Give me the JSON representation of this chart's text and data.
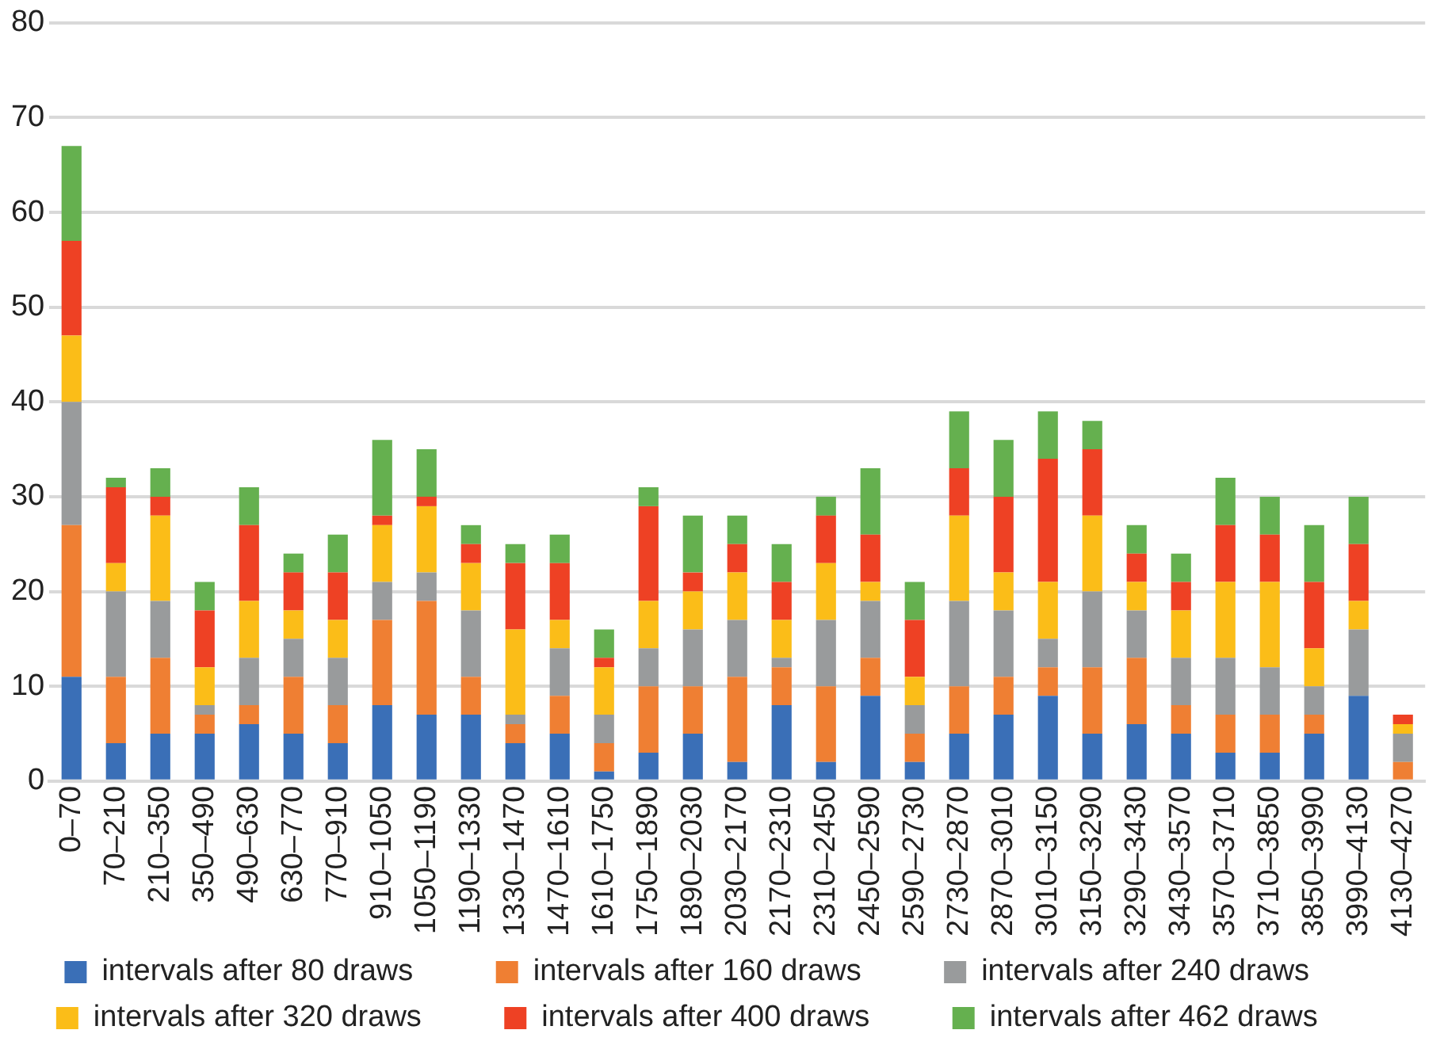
{
  "chart_data": {
    "type": "bar",
    "stacked": true,
    "categories": [
      "0–70",
      "70–210",
      "210–350",
      "350–490",
      "490–630",
      "630–770",
      "770–910",
      "910–1050",
      "1050–1190",
      "1190–1330",
      "1330–1470",
      "1470–1610",
      "1610–1750",
      "1750–1890",
      "1890–2030",
      "2030–2170",
      "2170–2310",
      "2310–2450",
      "2450–2590",
      "2590–2730",
      "2730–2870",
      "2870–3010",
      "3010–3150",
      "3150–3290",
      "3290–3430",
      "3430–3570",
      "3570–3710",
      "3710–3850",
      "3850–3990",
      "3990–4130",
      "4130–4270"
    ],
    "series": [
      {
        "name": "intervals after 80 draws",
        "color": "#3a6fb7",
        "values": [
          11,
          4,
          5,
          5,
          6,
          5,
          4,
          8,
          7,
          7,
          4,
          5,
          1,
          3,
          5,
          2,
          8,
          2,
          9,
          2,
          5,
          7,
          9,
          5,
          6,
          5,
          3,
          3,
          5,
          9,
          0
        ]
      },
      {
        "name": "intervals after 160 draws",
        "color": "#ef7f33",
        "values": [
          16,
          7,
          8,
          2,
          2,
          6,
          4,
          9,
          12,
          4,
          2,
          4,
          3,
          7,
          5,
          9,
          4,
          8,
          4,
          3,
          5,
          4,
          3,
          7,
          7,
          3,
          4,
          4,
          2,
          0,
          2
        ]
      },
      {
        "name": "intervals after 240 draws",
        "color": "#999b9c",
        "values": [
          13,
          9,
          6,
          1,
          5,
          4,
          5,
          4,
          3,
          7,
          1,
          5,
          3,
          4,
          6,
          6,
          1,
          7,
          6,
          3,
          9,
          7,
          3,
          8,
          5,
          5,
          6,
          5,
          3,
          7,
          3
        ]
      },
      {
        "name": "intervals after 320 draws",
        "color": "#fbbd18",
        "values": [
          7,
          3,
          9,
          4,
          6,
          3,
          4,
          6,
          7,
          5,
          9,
          3,
          5,
          5,
          4,
          5,
          4,
          6,
          2,
          3,
          9,
          4,
          6,
          8,
          3,
          5,
          8,
          9,
          4,
          3,
          1
        ]
      },
      {
        "name": "intervals after 400 draws",
        "color": "#ee4124",
        "values": [
          10,
          8,
          2,
          6,
          8,
          4,
          5,
          1,
          1,
          2,
          7,
          6,
          1,
          10,
          2,
          3,
          4,
          5,
          5,
          6,
          5,
          8,
          13,
          7,
          3,
          3,
          6,
          5,
          7,
          6,
          1
        ]
      },
      {
        "name": "intervals after 462 draws",
        "color": "#65b04f",
        "values": [
          10,
          1,
          3,
          3,
          4,
          2,
          4,
          8,
          5,
          2,
          2,
          3,
          3,
          2,
          6,
          3,
          4,
          2,
          7,
          4,
          6,
          6,
          5,
          3,
          3,
          3,
          5,
          4,
          6,
          5,
          0
        ]
      }
    ],
    "ylim": [
      0,
      80
    ],
    "yticks": [
      0,
      10,
      20,
      30,
      40,
      50,
      60,
      70,
      80
    ],
    "grid": "y",
    "legend": "bottom"
  }
}
